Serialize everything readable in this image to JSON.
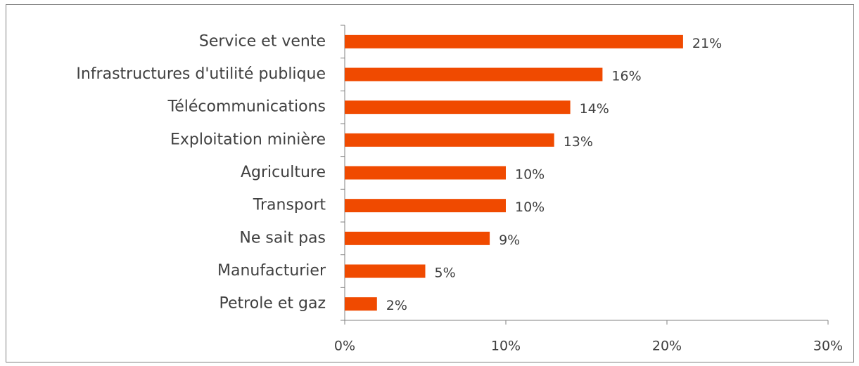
{
  "chart_data": {
    "type": "barh",
    "categories": [
      "Service et vente",
      "Infrastructures d'utilité publique",
      "Télécommunications",
      "Exploitation minière",
      "Agriculture",
      "Transport",
      "Ne sait pas",
      "Manufacturier",
      "Petrole et gaz"
    ],
    "values": [
      21,
      16,
      14,
      13,
      10,
      10,
      9,
      5,
      2
    ],
    "value_labels": [
      "21%",
      "16%",
      "14%",
      "13%",
      "10%",
      "10%",
      "9%",
      "5%",
      "2%"
    ],
    "color": "#f04a00",
    "xlim": [
      0,
      30
    ],
    "xticks": [
      {
        "value": 0,
        "label": "0%"
      },
      {
        "value": 10,
        "label": "10%"
      },
      {
        "value": 20,
        "label": "20%"
      },
      {
        "value": 30,
        "label": "30%"
      }
    ],
    "grid": false
  }
}
